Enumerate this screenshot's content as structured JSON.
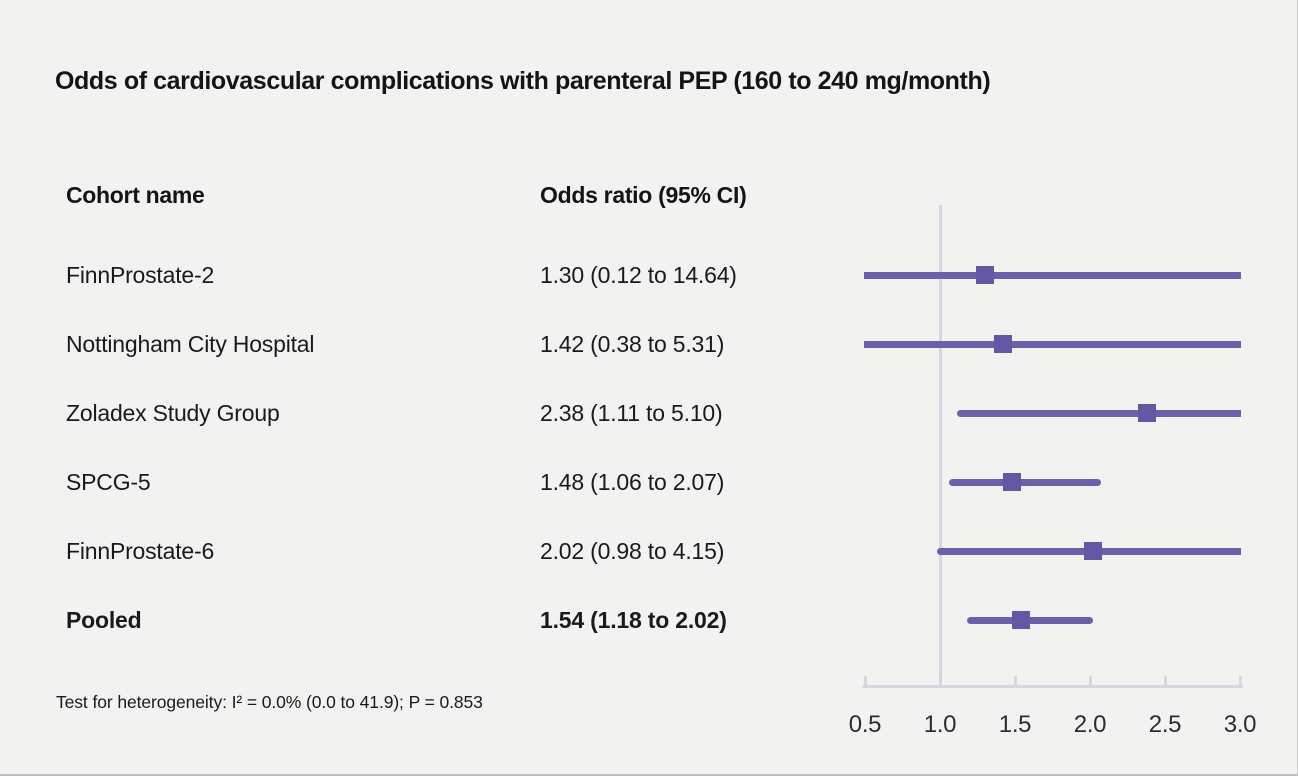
{
  "title": "Odds of cardiovascular complications with parenteral PEP (160 to 240 mg/month)",
  "table": {
    "headers": {
      "cohort": "Cohort name",
      "odds": "Odds ratio (95% CI)"
    },
    "rows": [
      {
        "cohort": "FinnProstate-2",
        "odds_text": "1.30 (0.12 to 14.64)",
        "emphasis": false
      },
      {
        "cohort": "Nottingham City Hospital",
        "odds_text": "1.42 (0.38 to 5.31)",
        "emphasis": false
      },
      {
        "cohort": "Zoladex Study Group",
        "odds_text": "2.38 (1.11 to 5.10)",
        "emphasis": false
      },
      {
        "cohort": "SPCG-5",
        "odds_text": "1.48 (1.06 to 2.07)",
        "emphasis": false
      },
      {
        "cohort": "FinnProstate-6",
        "odds_text": "2.02 (0.98 to 4.15)",
        "emphasis": false
      },
      {
        "cohort": "Pooled",
        "odds_text": "1.54 (1.18 to 2.02)",
        "emphasis": true
      }
    ]
  },
  "footnote": "Test for heterogeneity: I² = 0.0% (0.0 to 41.9); P = 0.853",
  "chart_data": {
    "type": "forest",
    "title": "Odds of cardiovascular complications with parenteral PEP (160 to 240 mg/month)",
    "x_axis": {
      "scale": "linear",
      "min": 0.5,
      "max": 3.0,
      "ticks": [
        0.5,
        1.0,
        1.5,
        2.0,
        2.5,
        3.0
      ],
      "tick_labels": [
        "0.5",
        "1.0",
        "1.5",
        "2.0",
        "2.5",
        "3.0"
      ],
      "reference_line": 1.0
    },
    "series": [
      {
        "name": "FinnProstate-2",
        "or": 1.3,
        "ci_low": 0.12,
        "ci_high": 14.64,
        "pooled": false
      },
      {
        "name": "Nottingham City Hospital",
        "or": 1.42,
        "ci_low": 0.38,
        "ci_high": 5.31,
        "pooled": false
      },
      {
        "name": "Zoladex Study Group",
        "or": 2.38,
        "ci_low": 1.11,
        "ci_high": 5.1,
        "pooled": false
      },
      {
        "name": "SPCG-5",
        "or": 1.48,
        "ci_low": 1.06,
        "ci_high": 2.07,
        "pooled": false
      },
      {
        "name": "FinnProstate-6",
        "or": 2.02,
        "ci_low": 0.98,
        "ci_high": 4.15,
        "pooled": false
      },
      {
        "name": "Pooled",
        "or": 1.54,
        "ci_low": 1.18,
        "ci_high": 2.02,
        "pooled": true
      }
    ],
    "marker": "square",
    "ci_clipped_to_axis_range": true,
    "legend": "none",
    "grid": false,
    "colors": {
      "ci_line": "#6C60AB",
      "marker": "#6557A3",
      "axis": "#D3D7DF",
      "reference_line": "#D3D7DF",
      "background": "#F2F2F0",
      "text": "#141414"
    }
  }
}
